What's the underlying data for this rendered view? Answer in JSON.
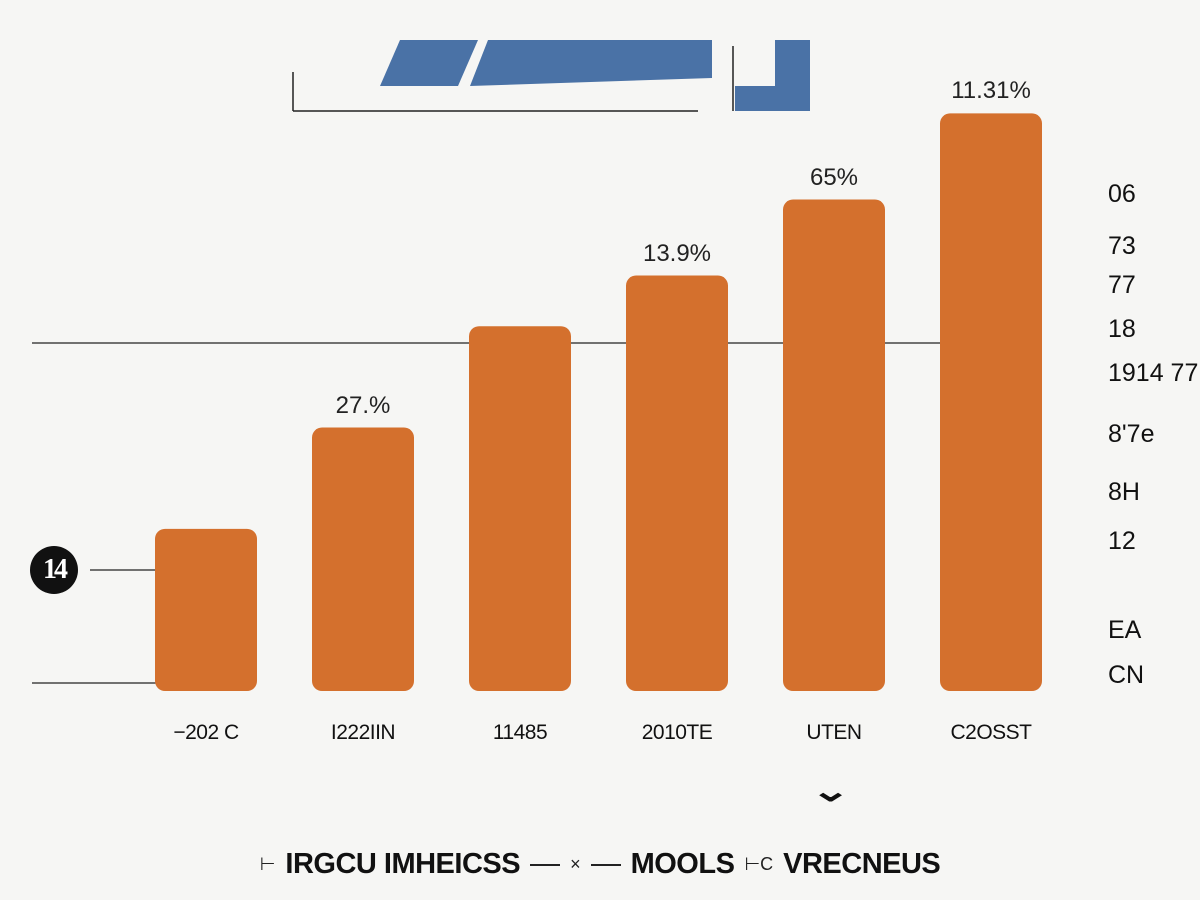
{
  "colors": {
    "bar": "#d4702d",
    "brand": "#4a72a6",
    "axis": "#222222"
  },
  "badge": {
    "text": "14"
  },
  "right_axis": {
    "labels": [
      "06",
      "73",
      "77",
      "18",
      "1914 77",
      "8'7e",
      "8H",
      "12",
      "EA",
      "CN"
    ]
  },
  "chevron": {
    "icon": "chevron-down-icon"
  },
  "legend": {
    "sym1": "⊢",
    "item1": "IRGCU IMHEICSS",
    "sym2": "×",
    "item2": "MOOLS",
    "sym3": "⊢C",
    "item3": "VRECNEUS"
  },
  "chart_data": {
    "type": "bar",
    "categories": [
      "−202 C",
      "I222IIN",
      "11485",
      "2010TE",
      "UTEN",
      "C2OSST"
    ],
    "values": [
      32,
      52,
      72,
      82,
      97,
      114
    ],
    "data_labels": [
      "",
      "27.%",
      "",
      "13.9%",
      "65%",
      "11.31%"
    ],
    "ylim": [
      0,
      120
    ],
    "grid": false
  }
}
